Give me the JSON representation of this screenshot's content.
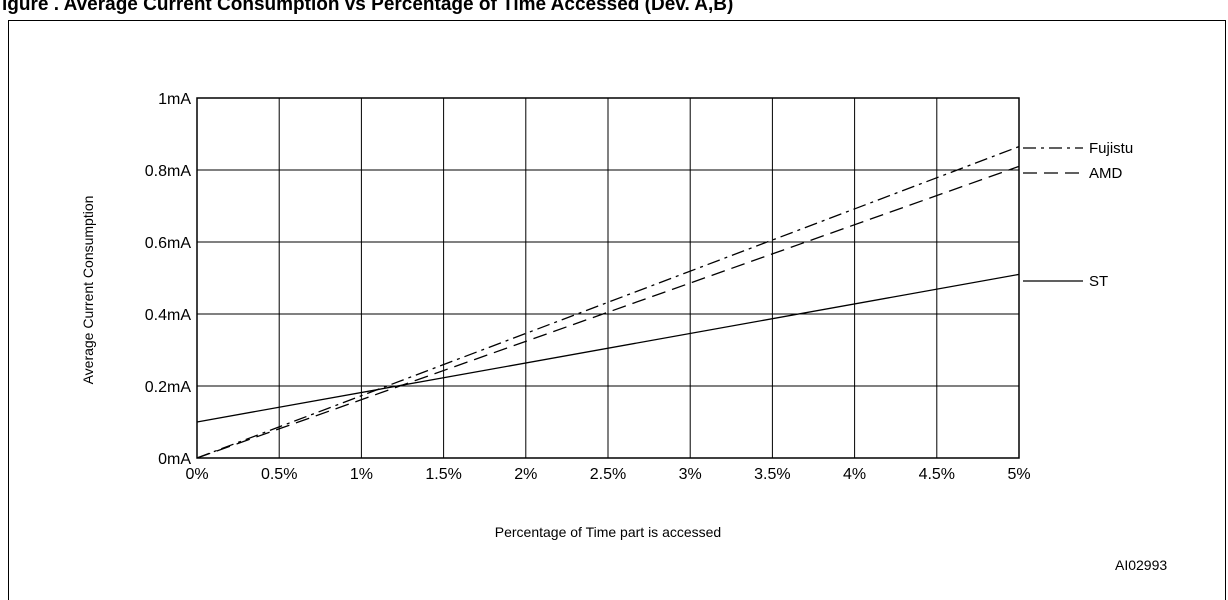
{
  "figure_title": "igure . Average Current Consumption vs Percentage of Time Accessed (Dev. A,B)",
  "figure_code": "AI02993",
  "chart_data": {
    "type": "line",
    "title": "",
    "xlabel": "Percentage of Time part is accessed",
    "ylabel": "Average Current Consumption",
    "x_unit": "%",
    "y_unit": "mA",
    "xlim": [
      0,
      5
    ],
    "ylim": [
      0,
      1
    ],
    "x_ticks": [
      0,
      0.5,
      1,
      1.5,
      2,
      2.5,
      3,
      3.5,
      4,
      4.5,
      5
    ],
    "x_tick_labels": [
      "0%",
      "0.5%",
      "1%",
      "1.5%",
      "2%",
      "2.5%",
      "3%",
      "3.5%",
      "4%",
      "4.5%",
      "5%"
    ],
    "y_ticks": [
      0,
      0.2,
      0.4,
      0.6,
      0.8,
      1.0
    ],
    "y_tick_labels": [
      "0mA",
      "0.2mA",
      "0.4mA",
      "0.6mA",
      "0.8mA",
      "1mA"
    ],
    "grid": true,
    "legend_position": "right",
    "series": [
      {
        "name": "Fujistu",
        "style": "dash-dot",
        "x": [
          0,
          5
        ],
        "y": [
          0.0,
          0.865
        ]
      },
      {
        "name": "AMD",
        "style": "dashed",
        "x": [
          0,
          5
        ],
        "y": [
          0.0,
          0.81
        ]
      },
      {
        "name": "ST",
        "style": "solid",
        "x": [
          0,
          5
        ],
        "y": [
          0.1,
          0.51
        ]
      }
    ]
  }
}
